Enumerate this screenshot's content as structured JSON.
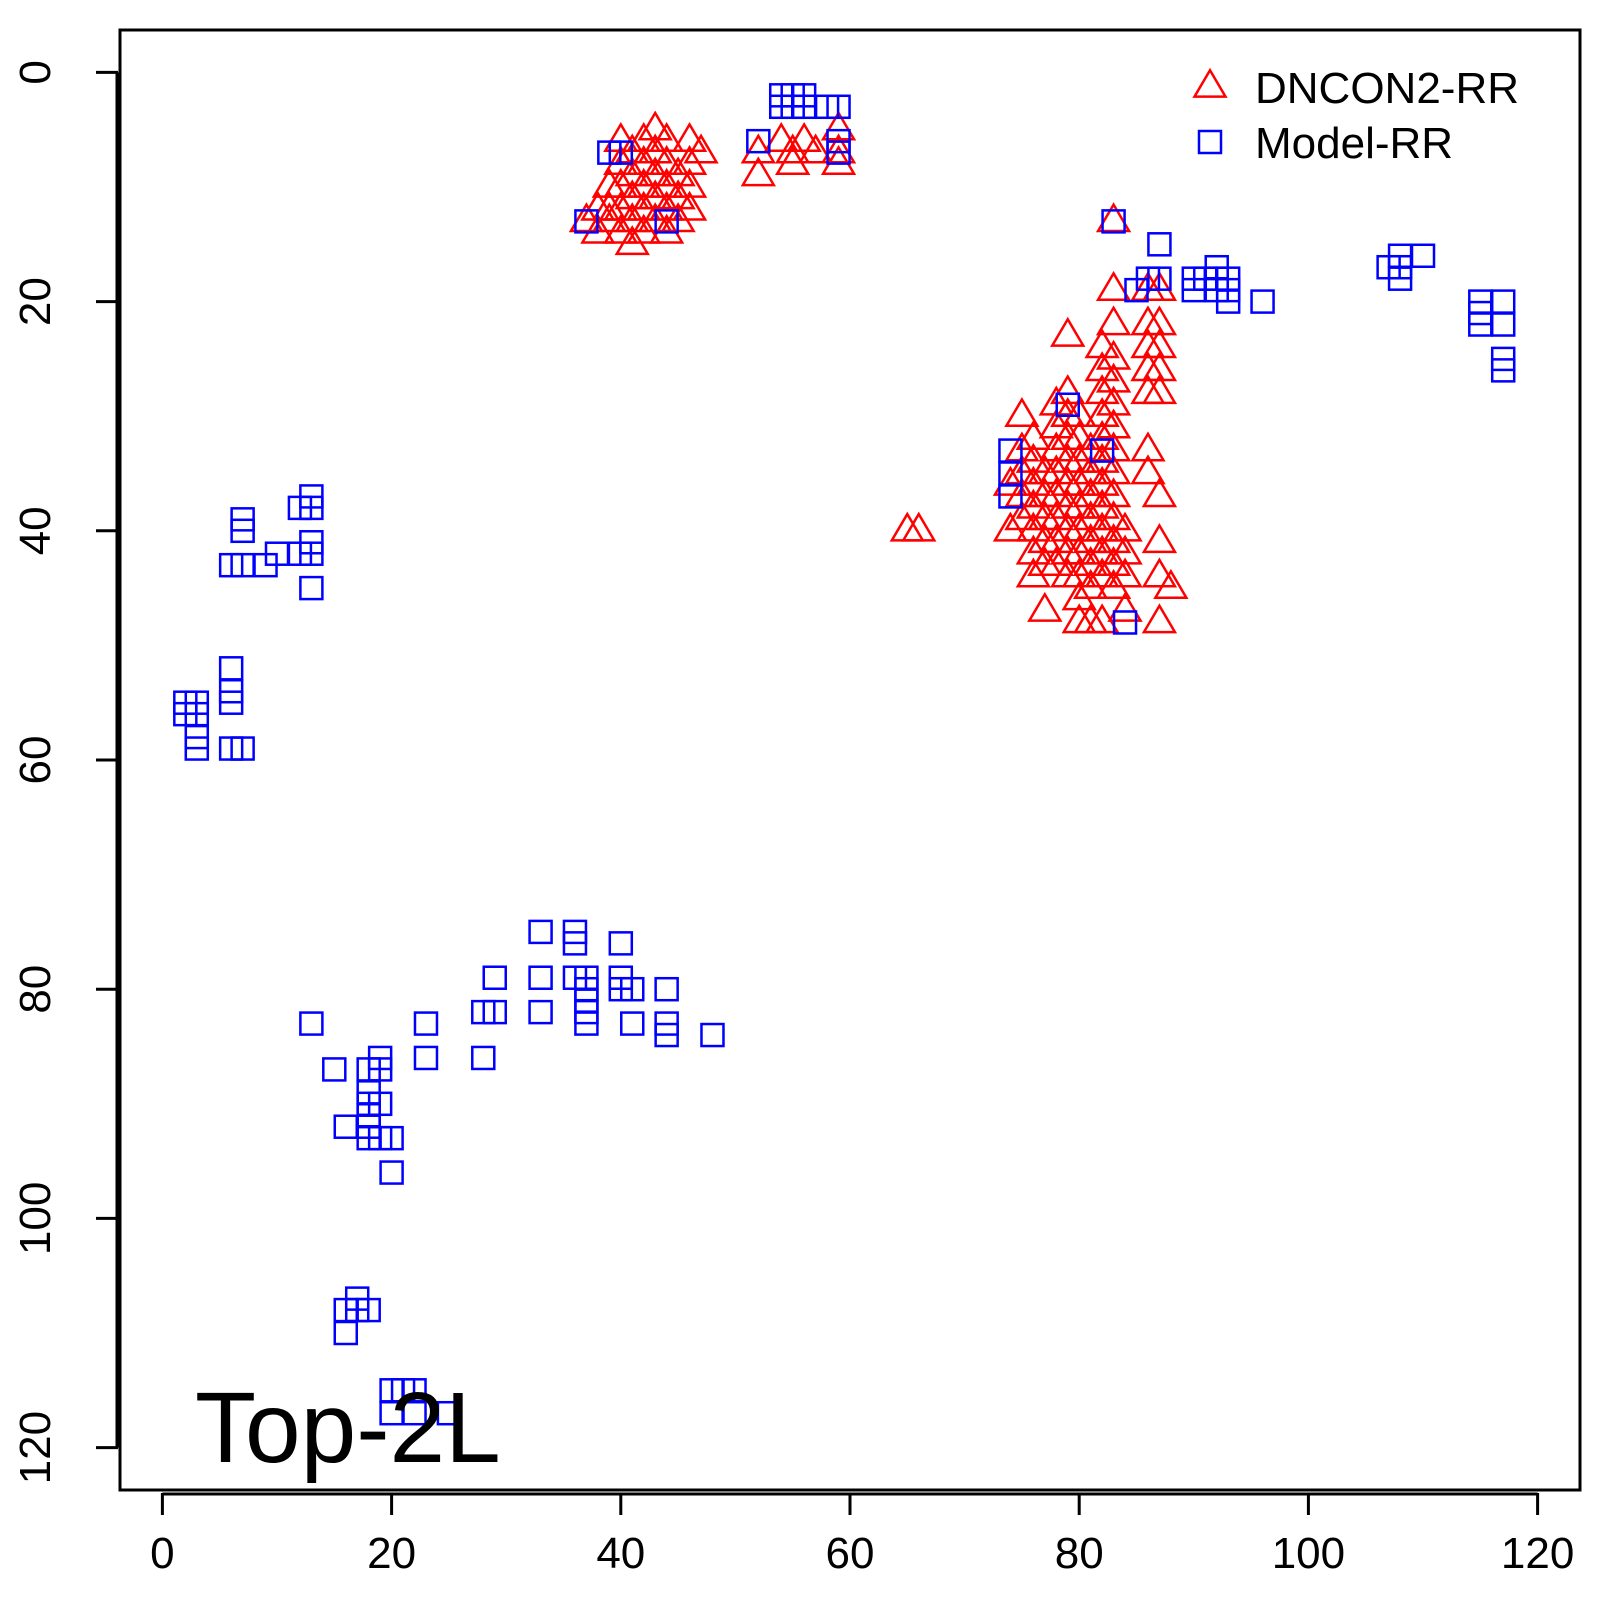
{
  "chart_data": {
    "type": "scatter",
    "title": "",
    "xlabel": "",
    "ylabel": "",
    "xlim": [
      -3.7,
      123.7
    ],
    "ylim": [
      -3.7,
      123.7
    ],
    "y_reversed": true,
    "x_ticks": [
      0,
      20,
      40,
      60,
      80,
      100,
      120
    ],
    "y_ticks": [
      0,
      20,
      40,
      60,
      80,
      100,
      120
    ],
    "grid": false,
    "legend_position": "top-right",
    "annotation": "Top-2L",
    "series": [
      {
        "name": "DNCON2-RR",
        "marker": "triangle-open",
        "color": "#ff0000",
        "points": [
          [
            37,
            13
          ],
          [
            38,
            12
          ],
          [
            38,
            14
          ],
          [
            39,
            10
          ],
          [
            39,
            12
          ],
          [
            39,
            13
          ],
          [
            40,
            6
          ],
          [
            40,
            8
          ],
          [
            40,
            10
          ],
          [
            40,
            12
          ],
          [
            40,
            14
          ],
          [
            41,
            7
          ],
          [
            41,
            9
          ],
          [
            41,
            11
          ],
          [
            41,
            13
          ],
          [
            41,
            15
          ],
          [
            42,
            6
          ],
          [
            42,
            8
          ],
          [
            42,
            10
          ],
          [
            42,
            12
          ],
          [
            42,
            14
          ],
          [
            43,
            5
          ],
          [
            43,
            7
          ],
          [
            43,
            9
          ],
          [
            43,
            11
          ],
          [
            43,
            13
          ],
          [
            44,
            6
          ],
          [
            44,
            8
          ],
          [
            44,
            10
          ],
          [
            44,
            12
          ],
          [
            44,
            14
          ],
          [
            45,
            9
          ],
          [
            45,
            11
          ],
          [
            45,
            13
          ],
          [
            46,
            6
          ],
          [
            46,
            8
          ],
          [
            46,
            10
          ],
          [
            46,
            12
          ],
          [
            47,
            7
          ],
          [
            52,
            7
          ],
          [
            52,
            9
          ],
          [
            54,
            6
          ],
          [
            55,
            7
          ],
          [
            55,
            8
          ],
          [
            56,
            6
          ],
          [
            57,
            7
          ],
          [
            59,
            5
          ],
          [
            59,
            7
          ],
          [
            59,
            8
          ],
          [
            65,
            40
          ],
          [
            66,
            40
          ],
          [
            74,
            36
          ],
          [
            74,
            40
          ],
          [
            75,
            30
          ],
          [
            75,
            33
          ],
          [
            75,
            35
          ],
          [
            75,
            37
          ],
          [
            75,
            39
          ],
          [
            76,
            32
          ],
          [
            76,
            34
          ],
          [
            76,
            36
          ],
          [
            76,
            38
          ],
          [
            76,
            40
          ],
          [
            76,
            42
          ],
          [
            76,
            44
          ],
          [
            77,
            35
          ],
          [
            77,
            37
          ],
          [
            77,
            39
          ],
          [
            77,
            41
          ],
          [
            77,
            43
          ],
          [
            77,
            47
          ],
          [
            78,
            29
          ],
          [
            78,
            31
          ],
          [
            78,
            33
          ],
          [
            78,
            35
          ],
          [
            78,
            37
          ],
          [
            78,
            39
          ],
          [
            78,
            41
          ],
          [
            78,
            43
          ],
          [
            79,
            23
          ],
          [
            79,
            28
          ],
          [
            79,
            30
          ],
          [
            79,
            32
          ],
          [
            79,
            34
          ],
          [
            79,
            36
          ],
          [
            79,
            38
          ],
          [
            79,
            40
          ],
          [
            79,
            42
          ],
          [
            79,
            44
          ],
          [
            80,
            30
          ],
          [
            80,
            32
          ],
          [
            80,
            34
          ],
          [
            80,
            36
          ],
          [
            80,
            38
          ],
          [
            80,
            40
          ],
          [
            80,
            42
          ],
          [
            80,
            44
          ],
          [
            80,
            46
          ],
          [
            80,
            48
          ],
          [
            81,
            33
          ],
          [
            81,
            35
          ],
          [
            81,
            37
          ],
          [
            81,
            39
          ],
          [
            81,
            41
          ],
          [
            81,
            43
          ],
          [
            81,
            45
          ],
          [
            81,
            48
          ],
          [
            82,
            24
          ],
          [
            82,
            26
          ],
          [
            82,
            28
          ],
          [
            82,
            30
          ],
          [
            82,
            32
          ],
          [
            82,
            34
          ],
          [
            82,
            36
          ],
          [
            82,
            38
          ],
          [
            82,
            40
          ],
          [
            82,
            42
          ],
          [
            82,
            44
          ],
          [
            82,
            48
          ],
          [
            83,
            13
          ],
          [
            83,
            19
          ],
          [
            83,
            22
          ],
          [
            83,
            25
          ],
          [
            83,
            27
          ],
          [
            83,
            29
          ],
          [
            83,
            31
          ],
          [
            83,
            33
          ],
          [
            83,
            35
          ],
          [
            83,
            37
          ],
          [
            83,
            39
          ],
          [
            83,
            41
          ],
          [
            83,
            43
          ],
          [
            83,
            45
          ],
          [
            84,
            40
          ],
          [
            84,
            42
          ],
          [
            84,
            44
          ],
          [
            84,
            47
          ],
          [
            86,
            19
          ],
          [
            86,
            22
          ],
          [
            86,
            24
          ],
          [
            86,
            26
          ],
          [
            86,
            28
          ],
          [
            86,
            33
          ],
          [
            86,
            35
          ],
          [
            87,
            19
          ],
          [
            87,
            22
          ],
          [
            87,
            24
          ],
          [
            87,
            26
          ],
          [
            87,
            28
          ],
          [
            87,
            37
          ],
          [
            87,
            41
          ],
          [
            87,
            44
          ],
          [
            87,
            48
          ],
          [
            88,
            45
          ]
        ]
      },
      {
        "name": "Model-RR",
        "marker": "square-open",
        "color": "#0000ff",
        "points": [
          [
            2,
            55
          ],
          [
            2,
            56
          ],
          [
            3,
            55
          ],
          [
            3,
            56
          ],
          [
            3,
            58
          ],
          [
            3,
            59
          ],
          [
            6,
            43
          ],
          [
            6,
            52
          ],
          [
            6,
            54
          ],
          [
            6,
            55
          ],
          [
            6,
            59
          ],
          [
            7,
            39
          ],
          [
            7,
            40
          ],
          [
            7,
            43
          ],
          [
            7,
            59
          ],
          [
            9,
            43
          ],
          [
            10,
            42
          ],
          [
            12,
            42
          ],
          [
            12,
            38
          ],
          [
            13,
            37
          ],
          [
            13,
            38
          ],
          [
            13,
            41
          ],
          [
            13,
            42
          ],
          [
            13,
            45
          ],
          [
            13,
            83
          ],
          [
            15,
            87
          ],
          [
            16,
            92
          ],
          [
            16,
            108
          ],
          [
            16,
            110
          ],
          [
            17,
            107
          ],
          [
            17,
            108
          ],
          [
            18,
            87
          ],
          [
            18,
            89
          ],
          [
            18,
            90
          ],
          [
            18,
            91
          ],
          [
            18,
            92
          ],
          [
            18,
            93
          ],
          [
            18,
            108
          ],
          [
            19,
            86
          ],
          [
            19,
            87
          ],
          [
            19,
            90
          ],
          [
            19,
            93
          ],
          [
            20,
            93
          ],
          [
            20,
            96
          ],
          [
            20,
            115
          ],
          [
            20,
            117
          ],
          [
            21,
            115
          ],
          [
            22,
            115
          ],
          [
            22,
            117
          ],
          [
            23,
            83
          ],
          [
            23,
            86
          ],
          [
            25,
            117
          ],
          [
            28,
            82
          ],
          [
            28,
            86
          ],
          [
            29,
            79
          ],
          [
            29,
            82
          ],
          [
            33,
            75
          ],
          [
            33,
            79
          ],
          [
            33,
            82
          ],
          [
            36,
            75
          ],
          [
            36,
            76
          ],
          [
            36,
            79
          ],
          [
            37,
            79
          ],
          [
            37,
            80
          ],
          [
            37,
            81
          ],
          [
            37,
            82
          ],
          [
            37,
            83
          ],
          [
            40,
            76
          ],
          [
            40,
            79
          ],
          [
            40,
            80
          ],
          [
            41,
            80
          ],
          [
            41,
            83
          ],
          [
            44,
            80
          ],
          [
            44,
            83
          ],
          [
            44,
            84
          ],
          [
            48,
            84
          ],
          [
            37,
            13
          ],
          [
            39,
            7
          ],
          [
            40,
            7
          ],
          [
            44,
            13
          ],
          [
            52,
            6
          ],
          [
            54,
            2
          ],
          [
            54,
            3
          ],
          [
            55,
            2
          ],
          [
            55,
            3
          ],
          [
            56,
            2
          ],
          [
            56,
            3
          ],
          [
            58,
            3
          ],
          [
            59,
            3
          ],
          [
            59,
            6
          ],
          [
            59,
            7
          ],
          [
            74,
            33
          ],
          [
            74,
            35
          ],
          [
            74,
            37
          ],
          [
            79,
            29
          ],
          [
            82,
            33
          ],
          [
            83,
            13
          ],
          [
            84,
            48
          ],
          [
            85,
            19
          ],
          [
            86,
            18
          ],
          [
            87,
            15
          ],
          [
            87,
            18
          ],
          [
            90,
            18
          ],
          [
            90,
            19
          ],
          [
            91,
            18
          ],
          [
            92,
            17
          ],
          [
            92,
            18
          ],
          [
            92,
            19
          ],
          [
            93,
            18
          ],
          [
            93,
            19
          ],
          [
            93,
            20
          ],
          [
            96,
            20
          ],
          [
            107,
            17
          ],
          [
            108,
            16
          ],
          [
            108,
            17
          ],
          [
            108,
            18
          ],
          [
            110,
            16
          ],
          [
            115,
            20
          ],
          [
            115,
            21
          ],
          [
            115,
            22
          ],
          [
            117,
            20
          ],
          [
            117,
            22
          ],
          [
            117,
            25
          ],
          [
            117,
            26
          ]
        ]
      }
    ]
  }
}
